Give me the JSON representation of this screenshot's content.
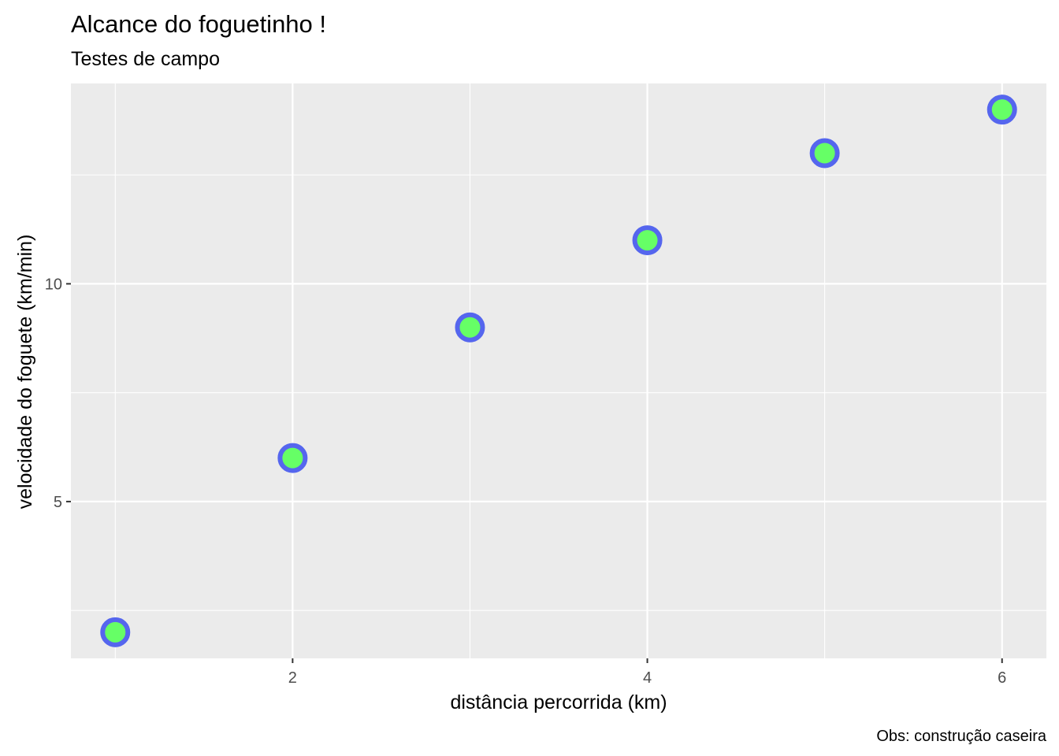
{
  "chart_data": {
    "type": "scatter",
    "title": "Alcance do foguetinho !",
    "subtitle": "Testes de campo",
    "xlabel": "distância percorrida (km)",
    "ylabel": "velocidade do foguete (km/min)",
    "caption": "Obs: construção caseira",
    "x": [
      1,
      2,
      3,
      4,
      5,
      6
    ],
    "y": [
      2,
      6,
      9,
      11,
      13,
      14
    ],
    "xlim": [
      0.75,
      6.25
    ],
    "ylim": [
      1.4,
      14.6
    ],
    "x_ticks": [
      2,
      4,
      6
    ],
    "x_tick_labels": [
      "2",
      "4",
      "6"
    ],
    "y_ticks": [
      5,
      10
    ],
    "y_tick_labels": [
      "5",
      "10"
    ],
    "x_minor_ticks": [
      1,
      3,
      5
    ],
    "y_minor_ticks": [
      2.5,
      7.5,
      12.5
    ],
    "grid": true,
    "colors": {
      "panel_background": "#ebebeb",
      "gridline": "#ffffff",
      "point_fill": "#66ff66",
      "point_stroke": "#5566ee"
    }
  }
}
